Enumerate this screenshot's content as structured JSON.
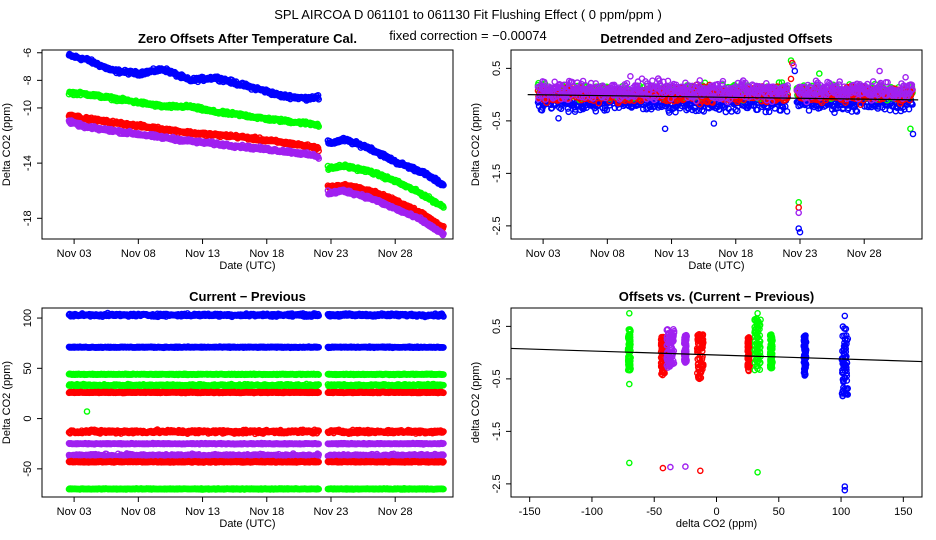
{
  "figure": {
    "title": "SPL   AIRCOA D   061101 to 061130   Fit Flushing Effect ( 0 ppm/ppm )",
    "subtitle": "fixed correction = −0.00074"
  },
  "chart_data": [
    {
      "id": "zero_offsets",
      "type": "scatter",
      "title": "Zero Offsets After Temperature Cal.",
      "xlabel": "Date (UTC)",
      "ylabel": "Delta CO2 (ppm)",
      "x_unit": "day of November 2006",
      "xlim": [
        0.5,
        32.5
      ],
      "ylim": [
        -19.5,
        -5.8
      ],
      "x_ticks": [
        {
          "v": 3,
          "label": "Nov 03"
        },
        {
          "v": 8,
          "label": "Nov 08"
        },
        {
          "v": 13,
          "label": "Nov 13"
        },
        {
          "v": 18,
          "label": "Nov 18"
        },
        {
          "v": 23,
          "label": "Nov 23"
        },
        {
          "v": 28,
          "label": "Nov 28"
        }
      ],
      "y_ticks": [
        {
          "v": -6,
          "label": "-6"
        },
        {
          "v": -8,
          "label": "-8"
        },
        {
          "v": -10,
          "label": "-10"
        },
        {
          "v": -14,
          "label": "-14"
        },
        {
          "v": -18,
          "label": "-18"
        }
      ],
      "series": [
        {
          "name": "blue",
          "color": "#0000ff",
          "noise": 0.12,
          "knots": [
            [
              2.6,
              -6.2
            ],
            [
              4,
              -6.5
            ],
            [
              6,
              -7.3
            ],
            [
              8,
              -7.5
            ],
            [
              10,
              -7.2
            ],
            [
              12,
              -8.0
            ],
            [
              14,
              -7.8
            ],
            [
              16,
              -8.3
            ],
            [
              18,
              -8.8
            ],
            [
              19,
              -9.1
            ],
            [
              21,
              -9.3
            ],
            [
              22,
              -9.2
            ],
            [
              22.8,
              -12.6
            ],
            [
              24,
              -12.3
            ],
            [
              26,
              -12.9
            ],
            [
              28,
              -13.9
            ],
            [
              30,
              -14.6
            ],
            [
              31.8,
              -15.6
            ]
          ]
        },
        {
          "name": "green",
          "color": "#00ff00",
          "noise": 0.1,
          "knots": [
            [
              2.6,
              -8.9
            ],
            [
              4,
              -9.0
            ],
            [
              8,
              -9.6
            ],
            [
              10,
              -9.9
            ],
            [
              12,
              -9.9
            ],
            [
              14,
              -10.3
            ],
            [
              16,
              -10.5
            ],
            [
              18,
              -10.8
            ],
            [
              20,
              -11.0
            ],
            [
              22,
              -11.2
            ],
            [
              22.8,
              -14.4
            ],
            [
              24,
              -14.2
            ],
            [
              26,
              -14.6
            ],
            [
              28,
              -15.3
            ],
            [
              30,
              -16.2
            ],
            [
              31.8,
              -17.2
            ]
          ]
        },
        {
          "name": "red",
          "color": "#ff0000",
          "noise": 0.1,
          "knots": [
            [
              2.6,
              -10.5
            ],
            [
              4,
              -10.8
            ],
            [
              8,
              -11.3
            ],
            [
              12,
              -11.8
            ],
            [
              16,
              -12.1
            ],
            [
              20,
              -12.6
            ],
            [
              22,
              -12.9
            ],
            [
              22.8,
              -15.8
            ],
            [
              24,
              -15.6
            ],
            [
              26,
              -16.0
            ],
            [
              28,
              -16.7
            ],
            [
              30,
              -17.6
            ],
            [
              31.8,
              -18.7
            ]
          ]
        },
        {
          "name": "purple",
          "color": "#a020f0",
          "noise": 0.1,
          "knots": [
            [
              2.6,
              -11.0
            ],
            [
              4,
              -11.4
            ],
            [
              8,
              -11.9
            ],
            [
              12,
              -12.4
            ],
            [
              16,
              -12.8
            ],
            [
              20,
              -13.2
            ],
            [
              22,
              -13.5
            ],
            [
              22.8,
              -16.2
            ],
            [
              24,
              -16.0
            ],
            [
              26,
              -16.5
            ],
            [
              28,
              -17.3
            ],
            [
              30,
              -18.1
            ],
            [
              31.8,
              -19.2
            ]
          ]
        }
      ]
    },
    {
      "id": "detrended",
      "type": "scatter",
      "title": "Detrended and Zero−adjusted Offsets",
      "xlabel": "Date (UTC)",
      "ylabel": "Delta CO2 (ppm)",
      "x_unit": "day of November 2006",
      "xlim": [
        0.5,
        32.5
      ],
      "ylim": [
        -2.75,
        0.85
      ],
      "x_ticks": [
        {
          "v": 3,
          "label": "Nov 03"
        },
        {
          "v": 8,
          "label": "Nov 08"
        },
        {
          "v": 13,
          "label": "Nov 13"
        },
        {
          "v": 18,
          "label": "Nov 18"
        },
        {
          "v": 23,
          "label": "Nov 23"
        },
        {
          "v": 28,
          "label": "Nov 28"
        }
      ],
      "y_ticks": [
        {
          "v": 0.5,
          "label": "0.5"
        },
        {
          "v": -0.5,
          "label": "-0.5"
        },
        {
          "v": -1.5,
          "label": "-1.5"
        },
        {
          "v": -2.5,
          "label": "-2.5"
        }
      ],
      "series": [
        {
          "name": "blue",
          "color": "#0000ff",
          "base": -0.15,
          "noise": 0.14
        },
        {
          "name": "green",
          "color": "#00ff00",
          "base": 0.05,
          "noise": 0.12
        },
        {
          "name": "red",
          "color": "#ff0000",
          "base": 0.0,
          "noise": 0.12
        },
        {
          "name": "purple",
          "color": "#a020f0",
          "base": 0.08,
          "noise": 0.15
        }
      ],
      "lines": [
        {
          "color": "#000000",
          "points": [
            [
              1.8,
              0.0
            ],
            [
              32.2,
              -0.1
            ]
          ]
        }
      ],
      "outliers": [
        {
          "x": 22.3,
          "y": 0.65,
          "color": "#00ff00"
        },
        {
          "x": 22.4,
          "y": 0.6,
          "color": "#ff0000"
        },
        {
          "x": 22.5,
          "y": 0.55,
          "color": "#a020f0"
        },
        {
          "x": 22.6,
          "y": 0.45,
          "color": "#0000ff"
        },
        {
          "x": 22.3,
          "y": 0.3,
          "color": "#ff0000"
        },
        {
          "x": 22.9,
          "y": -2.05,
          "color": "#00ff00"
        },
        {
          "x": 22.9,
          "y": -2.15,
          "color": "#ff0000"
        },
        {
          "x": 22.9,
          "y": -2.25,
          "color": "#a020f0"
        },
        {
          "x": 22.9,
          "y": -2.55,
          "color": "#0000ff"
        },
        {
          "x": 23.0,
          "y": -2.62,
          "color": "#0000ff"
        },
        {
          "x": 4.2,
          "y": -0.45,
          "color": "#0000ff"
        },
        {
          "x": 12.5,
          "y": -0.65,
          "color": "#0000ff"
        },
        {
          "x": 16.3,
          "y": -0.55,
          "color": "#0000ff"
        },
        {
          "x": 31.6,
          "y": -0.65,
          "color": "#00ff00"
        },
        {
          "x": 31.8,
          "y": -0.75,
          "color": "#0000ff"
        },
        {
          "x": 29.2,
          "y": 0.45,
          "color": "#a020f0"
        },
        {
          "x": 24.5,
          "y": 0.4,
          "color": "#00ff00"
        },
        {
          "x": 9.8,
          "y": 0.35,
          "color": "#a020f0"
        }
      ]
    },
    {
      "id": "current_previous",
      "type": "scatter",
      "title": "Current − Previous",
      "xlabel": "Date (UTC)",
      "ylabel": "Delta CO2 (ppm)",
      "x_unit": "day of November 2006",
      "xlim": [
        0.5,
        32.5
      ],
      "ylim": [
        -78,
        110
      ],
      "x_ticks": [
        {
          "v": 3,
          "label": "Nov 03"
        },
        {
          "v": 8,
          "label": "Nov 08"
        },
        {
          "v": 13,
          "label": "Nov 13"
        },
        {
          "v": 18,
          "label": "Nov 18"
        },
        {
          "v": 23,
          "label": "Nov 23"
        },
        {
          "v": 28,
          "label": "Nov 28"
        }
      ],
      "y_ticks": [
        {
          "v": 100,
          "label": "100"
        },
        {
          "v": 50,
          "label": "50"
        },
        {
          "v": 0,
          "label": "0"
        },
        {
          "v": -50,
          "label": "-50"
        }
      ],
      "series": [
        {
          "name": "blue",
          "color": "#0000ff",
          "base": 103,
          "noise": 1.2
        },
        {
          "name": "blue",
          "color": "#0000ff",
          "base": 71,
          "noise": 0.4
        },
        {
          "name": "green",
          "color": "#00ff00",
          "base": 44,
          "noise": 0.4
        },
        {
          "name": "green",
          "color": "#00ff00",
          "base": 33,
          "noise": 1.0
        },
        {
          "name": "red",
          "color": "#ff0000",
          "base": 26,
          "noise": 0.4
        },
        {
          "name": "red",
          "color": "#ff0000",
          "base": -13,
          "noise": 1.5
        },
        {
          "name": "purple",
          "color": "#a020f0",
          "base": -25,
          "noise": 0.4
        },
        {
          "name": "purple",
          "color": "#a020f0",
          "base": -37,
          "noise": 1.5
        },
        {
          "name": "red",
          "color": "#ff0000",
          "base": -43,
          "noise": 0.5
        },
        {
          "name": "green",
          "color": "#00ff00",
          "base": -70,
          "noise": 0.4
        }
      ],
      "outliers": [
        {
          "x": 4.0,
          "y": 7,
          "color": "#00ff00"
        }
      ]
    },
    {
      "id": "offsets_vs_diff",
      "type": "scatter",
      "title": "Offsets vs. (Current − Previous)",
      "xlabel": "delta CO2 (ppm)",
      "ylabel": "delta CO2 (ppm)",
      "xlim": [
        -165,
        165
      ],
      "ylim": [
        -2.75,
        0.85
      ],
      "x_ticks": [
        {
          "v": -150,
          "label": "-150"
        },
        {
          "v": -100,
          "label": "-100"
        },
        {
          "v": -50,
          "label": "-50"
        },
        {
          "v": 0,
          "label": "0"
        },
        {
          "v": 50,
          "label": "50"
        },
        {
          "v": 100,
          "label": "100"
        },
        {
          "v": 150,
          "label": "150"
        }
      ],
      "y_ticks": [
        {
          "v": 0.5,
          "label": "0.5"
        },
        {
          "v": -0.5,
          "label": "-0.5"
        },
        {
          "v": -1.5,
          "label": "-1.5"
        },
        {
          "v": -2.5,
          "label": "-2.5"
        }
      ],
      "clusters": [
        {
          "x": -70,
          "width": 2,
          "color": "#00ff00",
          "ymin": -0.35,
          "ymax": 0.45
        },
        {
          "x": -43,
          "width": 3,
          "color": "#ff0000",
          "ymin": -0.45,
          "ymax": 0.3
        },
        {
          "x": -37,
          "width": 6,
          "color": "#a020f0",
          "ymin": -0.3,
          "ymax": 0.45
        },
        {
          "x": -25,
          "width": 2,
          "color": "#a020f0",
          "ymin": -0.2,
          "ymax": 0.35
        },
        {
          "x": -13,
          "width": 5,
          "color": "#ff0000",
          "ymin": -0.5,
          "ymax": 0.35
        },
        {
          "x": 26,
          "width": 2,
          "color": "#ff0000",
          "ymin": -0.35,
          "ymax": 0.3
        },
        {
          "x": 33,
          "width": 5,
          "color": "#00ff00",
          "ymin": -0.35,
          "ymax": 0.65
        },
        {
          "x": 44,
          "width": 2,
          "color": "#00ff00",
          "ymin": -0.3,
          "ymax": 0.35
        },
        {
          "x": 71,
          "width": 2,
          "color": "#0000ff",
          "ymin": -0.45,
          "ymax": 0.35
        },
        {
          "x": 103,
          "width": 5,
          "color": "#0000ff",
          "ymin": -0.85,
          "ymax": 0.55
        }
      ],
      "lines": [
        {
          "color": "#000000",
          "points": [
            [
              -165,
              0.08
            ],
            [
              165,
              -0.17
            ]
          ]
        }
      ],
      "outliers": [
        {
          "x": -70,
          "y": 0.75,
          "color": "#00ff00"
        },
        {
          "x": -70,
          "y": -0.6,
          "color": "#00ff00"
        },
        {
          "x": -70,
          "y": -2.1,
          "color": "#00ff00"
        },
        {
          "x": -43,
          "y": -2.2,
          "color": "#ff0000"
        },
        {
          "x": -37,
          "y": -2.18,
          "color": "#a020f0"
        },
        {
          "x": -25,
          "y": -2.17,
          "color": "#a020f0"
        },
        {
          "x": -13,
          "y": -2.25,
          "color": "#ff0000"
        },
        {
          "x": 33,
          "y": -2.28,
          "color": "#00ff00"
        },
        {
          "x": 103,
          "y": -2.55,
          "color": "#0000ff"
        },
        {
          "x": 103,
          "y": -2.62,
          "color": "#0000ff"
        },
        {
          "x": 103,
          "y": 0.7,
          "color": "#0000ff"
        },
        {
          "x": 33,
          "y": 0.75,
          "color": "#00ff00"
        }
      ]
    }
  ]
}
